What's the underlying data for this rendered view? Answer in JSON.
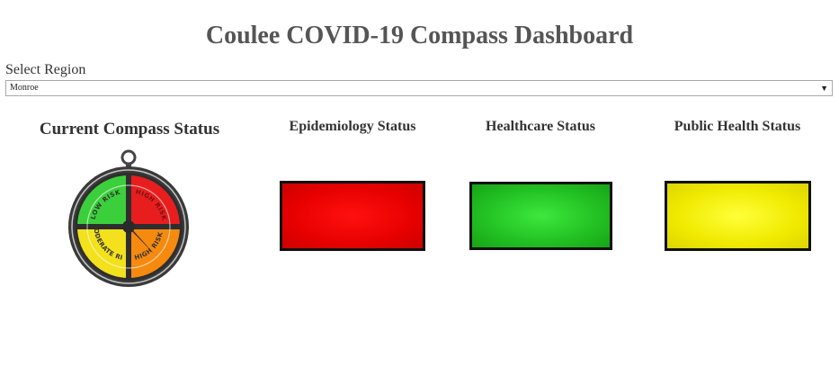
{
  "title": "Coulee COVID-19 Compass Dashboard",
  "region_select": {
    "label": "Select Region",
    "value": "Monroe"
  },
  "compass_panel": {
    "title": "Current Compass Status",
    "quadrants": [
      "LOW RISK",
      "HIGH RISK",
      "MODERATE RISK",
      "HIGH RISK"
    ],
    "colors": {
      "low": "#3ccf3c",
      "high_top": "#e81e1e",
      "moderate": "#f2e11c",
      "high_bottom": "#f58a0f"
    }
  },
  "epidemiology": {
    "title": "Epidemiology Status",
    "color": "#e80000"
  },
  "healthcare": {
    "title": "Healthcare Status",
    "color": "#22c022"
  },
  "public_health": {
    "title": "Public Health Status",
    "color": "#f0ea00"
  }
}
